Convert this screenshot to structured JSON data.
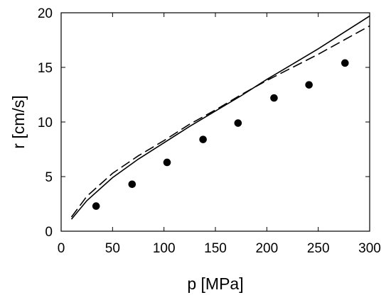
{
  "chart_data": {
    "type": "scatter",
    "title": "",
    "xlabel": "p [MPa]",
    "ylabel": "r [cm/s]",
    "xlim": [
      0,
      300
    ],
    "ylim": [
      0,
      20
    ],
    "xticks": [
      0,
      50,
      100,
      150,
      200,
      250,
      300
    ],
    "yticks": [
      0,
      5,
      10,
      15,
      20
    ],
    "grid": false,
    "legend": "none",
    "series": [
      {
        "style": "markers",
        "color": "#000000",
        "x": [
          34,
          69,
          103,
          138,
          172,
          207,
          241,
          276
        ],
        "y": [
          2.3,
          4.3,
          6.3,
          8.4,
          9.9,
          12.2,
          13.4,
          15.4
        ]
      },
      {
        "style": "solid-line",
        "color": "#000000",
        "x": [
          10,
          25,
          50,
          75,
          100,
          125,
          150,
          175,
          200,
          225,
          250,
          275,
          300
        ],
        "y": [
          1.1,
          2.8,
          4.9,
          6.6,
          8.1,
          9.6,
          11.0,
          12.4,
          13.9,
          15.3,
          16.7,
          18.2,
          19.7
        ]
      },
      {
        "style": "dashed-line",
        "color": "#000000",
        "x": [
          10,
          25,
          50,
          75,
          100,
          125,
          150,
          175,
          200,
          225,
          250,
          275,
          300
        ],
        "y": [
          1.3,
          3.2,
          5.3,
          6.9,
          8.3,
          9.8,
          11.1,
          12.5,
          13.8,
          15.0,
          16.2,
          17.5,
          18.8
        ]
      }
    ]
  }
}
